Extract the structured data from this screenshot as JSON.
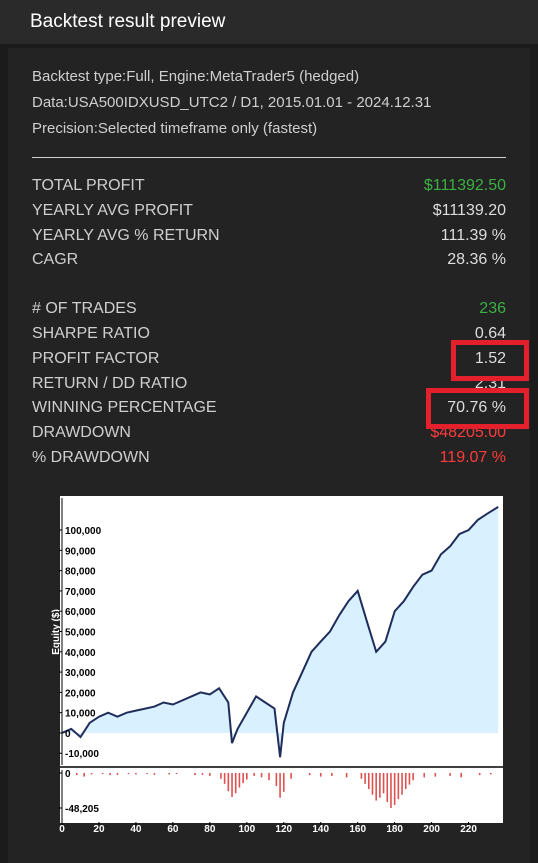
{
  "header": {
    "title": "Backtest result preview"
  },
  "info": [
    "Backtest type:Full, Engine:MetaTrader5 (hedged)",
    "Data:USA500IDXUSD_UTC2 / D1, 2015.01.01 - 2024.12.31",
    "Precision:Selected timeframe only (fastest)"
  ],
  "stats": [
    [
      {
        "label": "TOTAL PROFIT",
        "value": "$111392.50",
        "color": "#3cb043"
      },
      {
        "label": "YEARLY AVG PROFIT",
        "value": "$11139.20",
        "color": "#dddddd"
      },
      {
        "label": "YEARLY AVG % RETURN",
        "value": "111.39 %",
        "color": "#dddddd"
      },
      {
        "label": "CAGR",
        "value": "28.36 %",
        "color": "#dddddd"
      }
    ],
    [
      {
        "label": "# OF TRADES",
        "value": "236",
        "color": "#3cb043"
      },
      {
        "label": "SHARPE RATIO",
        "value": "0.64",
        "color": "#dddddd"
      },
      {
        "label": "PROFIT FACTOR",
        "value": "1.52",
        "color": "#dddddd"
      },
      {
        "label": "RETURN / DD RATIO",
        "value": "2.31",
        "color": "#dddddd"
      },
      {
        "label": "WINNING PERCENTAGE",
        "value": "70.76 %",
        "color": "#dddddd"
      },
      {
        "label": "DRAWDOWN",
        "value": "$48205.00",
        "color": "#ff3b3b"
      },
      {
        "label": "% DRAWDOWN",
        "value": "119.07 %",
        "color": "#ff3b3b"
      }
    ]
  ],
  "chart_data": [
    {
      "type": "area",
      "y_label": "Equity ($)",
      "color": "#1f2d5a",
      "fill": "#d8f0ff",
      "xlim": [
        0,
        237
      ],
      "ylim": [
        -15800,
        115800
      ],
      "yticks": [
        {
          "value": -10000,
          "label": "-10,000"
        },
        0,
        {
          "value": 10000,
          "label": "10,000"
        },
        {
          "value": 20000,
          "label": "20,000"
        },
        {
          "value": 30000,
          "label": "30,000"
        },
        {
          "value": 40000,
          "label": "40,000"
        },
        {
          "value": 50000,
          "label": "50,000"
        },
        {
          "value": 60000,
          "label": "60,000"
        },
        {
          "value": 70000,
          "label": "70,000"
        },
        {
          "value": 80000,
          "label": "80,000"
        },
        {
          "value": 90000,
          "label": "90,000"
        },
        {
          "value": 100000,
          "label": "100,000"
        }
      ],
      "x": [
        0,
        5,
        10,
        15,
        20,
        25,
        30,
        35,
        40,
        45,
        50,
        55,
        60,
        65,
        70,
        75,
        80,
        85,
        90,
        92,
        95,
        100,
        105,
        110,
        115,
        118,
        120,
        125,
        130,
        135,
        140,
        145,
        150,
        155,
        160,
        165,
        170,
        175,
        180,
        185,
        190,
        195,
        200,
        205,
        210,
        215,
        220,
        225,
        230,
        236
      ],
      "values": [
        0,
        2000,
        -2000,
        5000,
        8000,
        10000,
        8000,
        10000,
        11000,
        12000,
        13000,
        15000,
        14000,
        16000,
        18000,
        20000,
        19000,
        22000,
        15000,
        -5000,
        2000,
        10000,
        18000,
        15000,
        12000,
        -12000,
        5000,
        20000,
        30000,
        40000,
        45000,
        50000,
        58000,
        65000,
        70000,
        55000,
        40000,
        45000,
        60000,
        65000,
        72000,
        78000,
        80000,
        88000,
        92000,
        98000,
        100000,
        105000,
        108000,
        111392.5
      ]
    },
    {
      "type": "bar",
      "color": "#e05050",
      "xlim": [
        0,
        237
      ],
      "ylim": [
        -67500,
        4100
      ],
      "xticks": [
        0,
        20,
        40,
        60,
        80,
        100,
        120,
        140,
        160,
        180,
        200,
        220
      ],
      "yticks": [
        0,
        {
          "value": -48205,
          "label": "-48,205"
        }
      ],
      "x": [
        8,
        12,
        16,
        22,
        26,
        30,
        36,
        40,
        46,
        50,
        58,
        62,
        72,
        76,
        80,
        86,
        88,
        90,
        92,
        94,
        96,
        98,
        100,
        104,
        108,
        112,
        116,
        118,
        120,
        124,
        134,
        140,
        146,
        154,
        162,
        164,
        166,
        168,
        170,
        172,
        174,
        176,
        178,
        180,
        182,
        184,
        186,
        188,
        190,
        196,
        202,
        210,
        216,
        226,
        232
      ],
      "values": [
        -3000,
        -5000,
        -2000,
        -1500,
        -3000,
        -2500,
        -1500,
        -2000,
        -1500,
        -2500,
        -2000,
        -1500,
        -3000,
        -2500,
        -4000,
        -8000,
        -15000,
        -25000,
        -33000,
        -28000,
        -20000,
        -14000,
        -9000,
        -4000,
        -6000,
        -10000,
        -18000,
        -34000,
        -26000,
        -8000,
        -3000,
        -5000,
        -4000,
        -6000,
        -8000,
        -15000,
        -22000,
        -30000,
        -38000,
        -34000,
        -28000,
        -40000,
        -48205,
        -44000,
        -36000,
        -30000,
        -22000,
        -16000,
        -10000,
        -6000,
        -5000,
        -4000,
        -6000,
        -3000,
        -2000
      ]
    }
  ]
}
